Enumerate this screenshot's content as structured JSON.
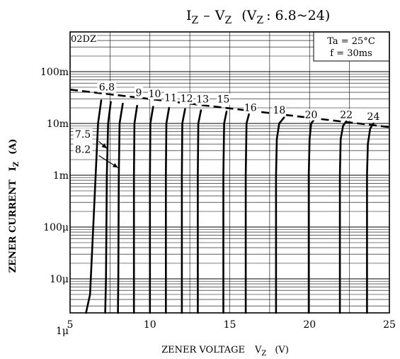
{
  "title": {
    "i": "I",
    "i_sub": "Z",
    "dash": "–",
    "v": "V",
    "v_sub": "Z",
    "range_open": "(V",
    "range_sub": "Z",
    "range_rest": ": 6.8~24)"
  },
  "ylabel": {
    "main": "ZENER CURRENT",
    "sym": "I",
    "sub": "Z",
    "unit": "(A)"
  },
  "xlabel": {
    "main": "ZENER VOLTAGE",
    "sym": "V",
    "sub": "Z",
    "unit": "(V)"
  },
  "series_label": "02DZ",
  "conditions": [
    "Ta = 25°C",
    "f = 30ms"
  ],
  "chart_data": {
    "type": "line",
    "xlim": [
      5,
      25
    ],
    "ylim": [
      5e-07,
      0.2
    ],
    "y_scale": "log",
    "x_ticks": [
      {
        "value": 5,
        "label": "5"
      },
      {
        "value": 10,
        "label": "10"
      },
      {
        "value": 15,
        "label": "15"
      },
      {
        "value": 20,
        "label": "20"
      },
      {
        "value": 25,
        "label": "25"
      }
    ],
    "y_ticks": [
      {
        "value": 0.1,
        "label": "100m"
      },
      {
        "value": 0.01,
        "label": "10m"
      },
      {
        "value": 0.001,
        "label": "1m"
      },
      {
        "value": 0.0001,
        "label": "100μ"
      },
      {
        "value": 1e-05,
        "label": "10μ"
      },
      {
        "value": 1e-06,
        "label": "1μ"
      }
    ],
    "grid": true,
    "series": [
      {
        "name": "6.8",
        "points": [
          [
            6.0,
            5e-07
          ],
          [
            6.25,
            5e-06
          ],
          [
            6.45,
            0.0001
          ],
          [
            6.6,
            0.001
          ],
          [
            6.75,
            0.01
          ],
          [
            6.95,
            0.028
          ]
        ]
      },
      {
        "name": "7.5",
        "points": [
          [
            7.2,
            5e-07
          ],
          [
            7.25,
            1e-05
          ],
          [
            7.3,
            0.001
          ],
          [
            7.38,
            0.01
          ],
          [
            7.55,
            0.026
          ]
        ]
      },
      {
        "name": "8.2",
        "points": [
          [
            8.0,
            5e-07
          ],
          [
            8.02,
            1e-05
          ],
          [
            8.05,
            0.001
          ],
          [
            8.1,
            0.01
          ],
          [
            8.3,
            0.024
          ]
        ]
      },
      {
        "name": "9",
        "points": [
          [
            9.0,
            5e-07
          ],
          [
            9.0,
            1e-05
          ],
          [
            9.0,
            0.001
          ],
          [
            9.03,
            0.01
          ],
          [
            9.2,
            0.022
          ]
        ]
      },
      {
        "name": "10",
        "points": [
          [
            10.0,
            5e-07
          ],
          [
            10.0,
            1e-05
          ],
          [
            10.0,
            0.001
          ],
          [
            10.03,
            0.01
          ],
          [
            10.2,
            0.021
          ]
        ]
      },
      {
        "name": "11",
        "points": [
          [
            11.0,
            5e-07
          ],
          [
            11.0,
            1e-05
          ],
          [
            11.0,
            0.001
          ],
          [
            11.03,
            0.01
          ],
          [
            11.2,
            0.02
          ]
        ]
      },
      {
        "name": "12",
        "points": [
          [
            12.0,
            5e-07
          ],
          [
            12.0,
            1e-05
          ],
          [
            12.0,
            0.001
          ],
          [
            12.03,
            0.01
          ],
          [
            12.2,
            0.019
          ]
        ]
      },
      {
        "name": "13",
        "points": [
          [
            13.0,
            5e-07
          ],
          [
            13.0,
            1e-05
          ],
          [
            13.0,
            0.001
          ],
          [
            13.03,
            0.01
          ],
          [
            13.2,
            0.018
          ]
        ]
      },
      {
        "name": "15",
        "points": [
          [
            14.6,
            5e-07
          ],
          [
            14.6,
            1e-05
          ],
          [
            14.6,
            0.001
          ],
          [
            14.65,
            0.01
          ],
          [
            14.8,
            0.017
          ]
        ]
      },
      {
        "name": "16",
        "points": [
          [
            16.0,
            5e-07
          ],
          [
            16.0,
            1e-05
          ],
          [
            16.0,
            0.001
          ],
          [
            16.05,
            0.01
          ],
          [
            16.2,
            0.015
          ]
        ]
      },
      {
        "name": "18",
        "points": [
          [
            17.9,
            5e-07
          ],
          [
            17.9,
            1e-05
          ],
          [
            17.9,
            0.001
          ],
          [
            17.95,
            0.005
          ],
          [
            18.1,
            0.01
          ],
          [
            18.4,
            0.013
          ]
        ]
      },
      {
        "name": "20",
        "points": [
          [
            19.95,
            5e-07
          ],
          [
            19.95,
            1e-05
          ],
          [
            19.95,
            0.001
          ],
          [
            20.0,
            0.005
          ],
          [
            20.1,
            0.01
          ],
          [
            20.3,
            0.012
          ]
        ]
      },
      {
        "name": "22",
        "points": [
          [
            21.9,
            5e-07
          ],
          [
            21.9,
            1e-05
          ],
          [
            21.9,
            0.001
          ],
          [
            21.95,
            0.005
          ],
          [
            22.1,
            0.009
          ],
          [
            22.3,
            0.011
          ]
        ]
      },
      {
        "name": "24",
        "points": [
          [
            23.6,
            5e-07
          ],
          [
            23.6,
            1e-05
          ],
          [
            23.6,
            0.001
          ],
          [
            23.65,
            0.004
          ],
          [
            23.8,
            0.008
          ],
          [
            24.0,
            0.01
          ]
        ]
      }
    ],
    "limit_line": {
      "style": "dashed",
      "points": [
        [
          5,
          0.045
        ],
        [
          25,
          0.0085
        ]
      ]
    },
    "curve_labels": [
      {
        "text": "6.8",
        "x": 7.3,
        "y": 0.045
      },
      {
        "text": "9",
        "x": 9.3,
        "y": 0.035
      },
      {
        "text": "10",
        "x": 10.3,
        "y": 0.033
      },
      {
        "text": "11",
        "x": 11.3,
        "y": 0.028
      },
      {
        "text": "12",
        "x": 12.3,
        "y": 0.027
      },
      {
        "text": "13",
        "x": 13.3,
        "y": 0.026
      },
      {
        "text": "15",
        "x": 14.6,
        "y": 0.026
      },
      {
        "text": "16",
        "x": 16.3,
        "y": 0.018
      },
      {
        "text": "18",
        "x": 18.1,
        "y": 0.016
      },
      {
        "text": "20",
        "x": 20.1,
        "y": 0.013
      },
      {
        "text": "22",
        "x": 22.3,
        "y": 0.013
      },
      {
        "text": "24",
        "x": 24.0,
        "y": 0.012
      },
      {
        "text": "7.5",
        "x": 5.8,
        "y": 0.0055
      },
      {
        "text": "8.2",
        "x": 5.8,
        "y": 0.0028
      }
    ],
    "arrows": [
      {
        "from": [
          6.8,
          0.0045
        ],
        "to": [
          7.3,
          0.0033
        ]
      },
      {
        "from": [
          6.8,
          0.0024
        ],
        "to": [
          8.0,
          0.0014
        ]
      }
    ]
  }
}
